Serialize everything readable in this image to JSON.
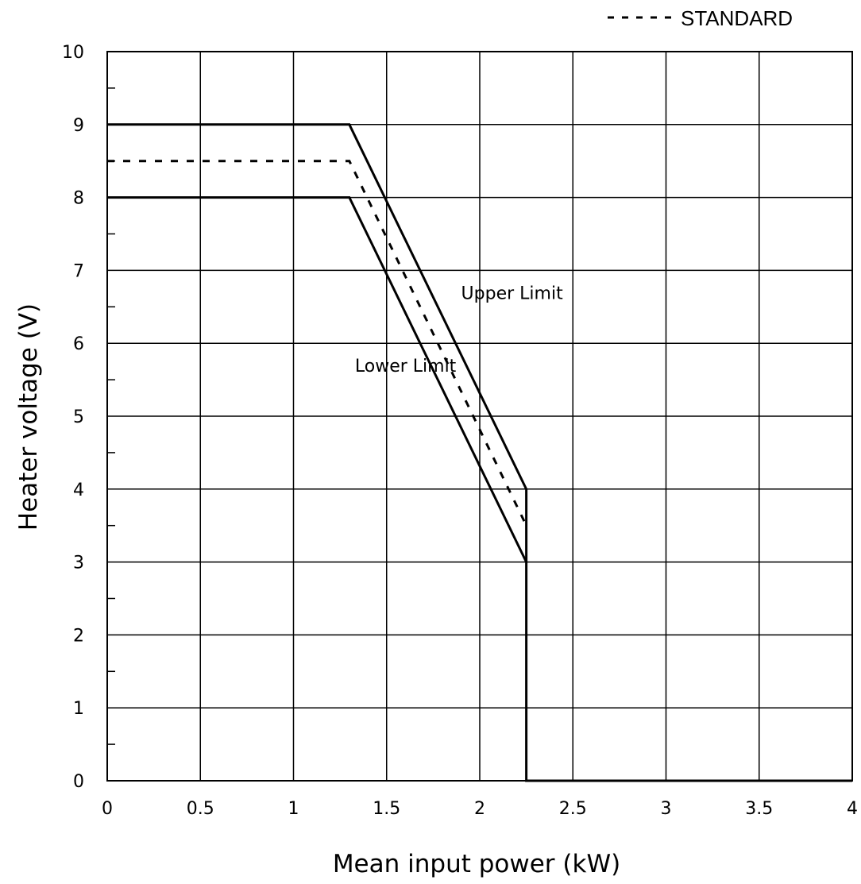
{
  "chart_data": {
    "type": "line",
    "title": "",
    "xlabel": "Mean input power (kW)",
    "ylabel": "Heater voltage (V)",
    "xlim": [
      0,
      4
    ],
    "ylim": [
      0,
      10
    ],
    "x_ticks": [
      0,
      0.5,
      1,
      1.5,
      2,
      2.5,
      3,
      3.5,
      4
    ],
    "y_ticks": [
      0,
      1,
      2,
      3,
      4,
      5,
      6,
      7,
      8,
      9,
      10
    ],
    "x_tick_labels": [
      "0",
      "0.5",
      "1",
      "1.5",
      "2",
      "2.5",
      "3",
      "3.5",
      "4"
    ],
    "y_tick_labels": [
      "0",
      "1",
      "2",
      "3",
      "4",
      "5",
      "6",
      "7",
      "8",
      "9",
      "10"
    ],
    "grid": true,
    "legend": {
      "placement": "top-right",
      "items": [
        {
          "label": "STANDARD",
          "style": "dashed"
        }
      ]
    },
    "series": [
      {
        "name": "Upper Limit",
        "style": "solid",
        "color": "#000000",
        "x": [
          0,
          1.3,
          2.25,
          2.25,
          4
        ],
        "y": [
          9,
          9,
          4,
          0,
          0
        ]
      },
      {
        "name": "STANDARD",
        "style": "dashed",
        "color": "#000000",
        "x": [
          0,
          1.3,
          2.25
        ],
        "y": [
          8.5,
          8.5,
          3.5
        ]
      },
      {
        "name": "Lower Limit",
        "style": "solid",
        "color": "#000000",
        "x": [
          0,
          1.3,
          2.25
        ],
        "y": [
          8,
          8,
          3
        ]
      }
    ],
    "annotations": [
      {
        "text": "Upper Limit",
        "x": 1.9,
        "y": 6.5
      },
      {
        "text": "Lower Limit",
        "x": 1.33,
        "y": 5.5
      }
    ]
  }
}
